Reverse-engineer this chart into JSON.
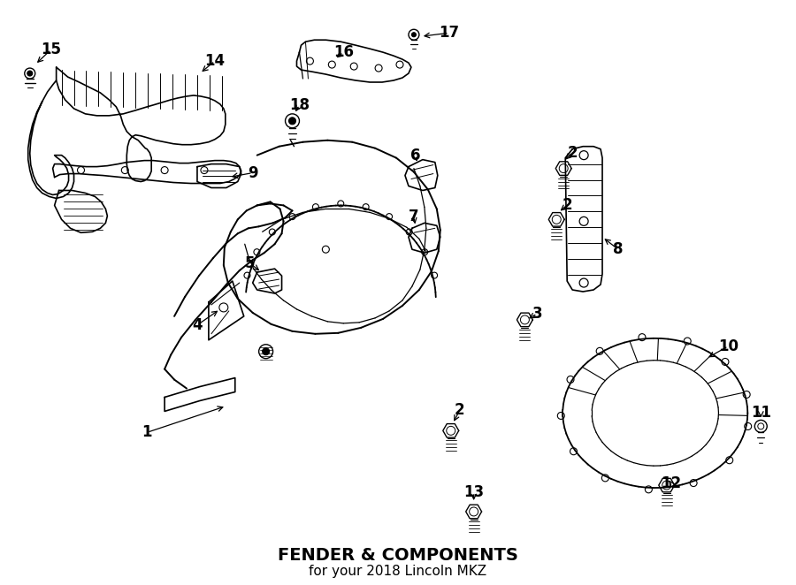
{
  "title": "FENDER & COMPONENTS",
  "subtitle": "for your 2018 Lincoln MKZ",
  "bg": "#ffffff",
  "lc": "#000000",
  "figsize": [
    9.0,
    6.62
  ],
  "dpi": 100
}
